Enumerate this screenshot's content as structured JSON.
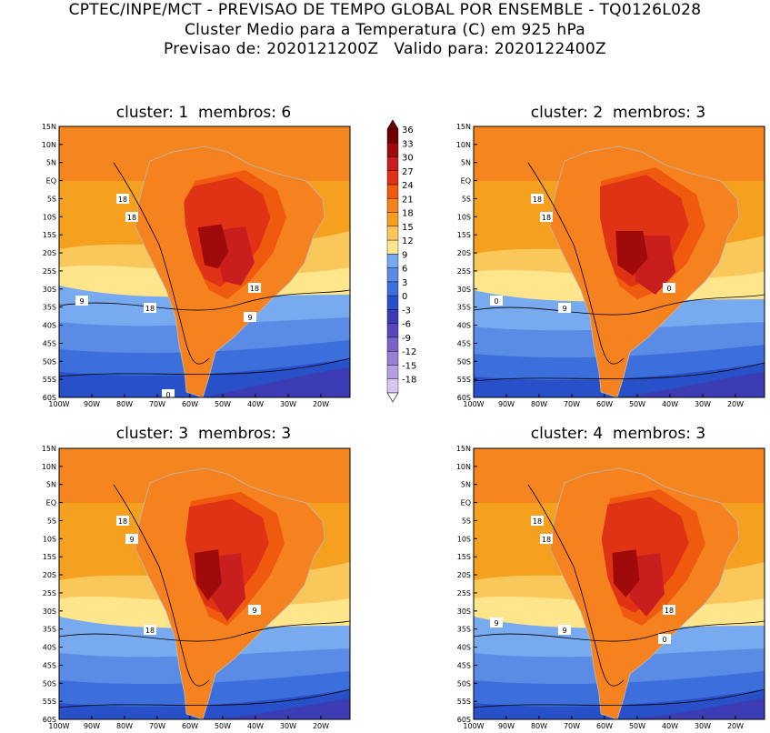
{
  "header": {
    "line1": "CPTEC/INPE/MCT - PREVISAO DE TEMPO GLOBAL POR ENSEMBLE - TQ0126L028",
    "line2": "Cluster Medio para a Temperatura (C) em 925 hPa",
    "line3": "Previsao de: 2020121200Z   Valido para: 2020122400Z"
  },
  "panels": [
    {
      "title": "cluster: 1  membros: 6",
      "contour_labels": [
        "18",
        "18",
        "18",
        "18",
        "9",
        "9",
        "0"
      ]
    },
    {
      "title": "cluster: 2  membros: 3",
      "contour_labels": [
        "18",
        "18",
        "9",
        "0",
        "0"
      ]
    },
    {
      "title": "cluster: 3  membros: 3",
      "contour_labels": [
        "18",
        "9",
        "18",
        "9"
      ]
    },
    {
      "title": "cluster: 4  membros: 3",
      "contour_labels": [
        "18",
        "18",
        "9",
        "18",
        "9",
        "0"
      ]
    }
  ],
  "lat_ticks": [
    "15N",
    "10N",
    "5N",
    "EQ",
    "5S",
    "10S",
    "15S",
    "20S",
    "25S",
    "30S",
    "35S",
    "40S",
    "45S",
    "50S",
    "55S",
    "60S"
  ],
  "lon_ticks": [
    "100W",
    "90W",
    "80W",
    "70W",
    "60W",
    "50W",
    "40W",
    "30W",
    "20W"
  ],
  "colorbar": {
    "labels": [
      "36",
      "33",
      "30",
      "27",
      "24",
      "21",
      "18",
      "15",
      "12",
      "9",
      "6",
      "3",
      "0",
      "-3",
      "-6",
      "-9",
      "-12",
      "-15",
      "-18"
    ],
    "colors": [
      "#6e0000",
      "#a00a0a",
      "#c81e1e",
      "#e03214",
      "#f05a0f",
      "#f5821e",
      "#f5a01e",
      "#fac85a",
      "#ffe68c",
      "#78aaf0",
      "#5a8ce6",
      "#3c6edc",
      "#2850c8",
      "#3c3cb4",
      "#5a46be",
      "#7864c8",
      "#9682d2",
      "#b4a0e1",
      "#d2c8f0"
    ]
  }
}
